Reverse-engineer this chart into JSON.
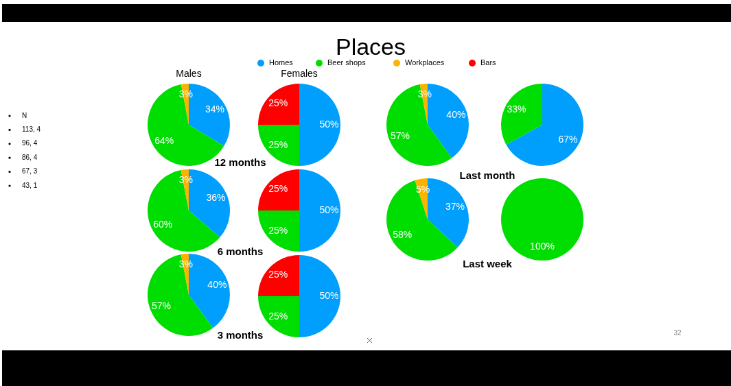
{
  "chart_data": [
    {
      "type": "other",
      "title": "Places",
      "annotations": [
        "N",
        "113, 4",
        "96, 4",
        "86, 4",
        "67, 3",
        "43, 1",
        "32"
      ]
    },
    {
      "type": "pie",
      "title": "Males",
      "xlabel": "12 months",
      "legend": "top",
      "categories": [
        "Homes",
        "Beer shops",
        "Workplaces"
      ],
      "values": [
        34,
        64,
        3
      ],
      "value_labels": [
        "34%",
        "64%",
        "3%"
      ],
      "colors": [
        "#009ffd",
        "#00dd00",
        "#fbb300"
      ]
    },
    {
      "type": "pie",
      "title": "Females",
      "categories": [
        null,
        null,
        "Bars"
      ],
      "values": [
        50,
        25,
        25
      ],
      "value_labels": [
        "50%",
        "25%",
        "25%"
      ],
      "colors": [
        "#009ffd",
        "#00dd00",
        "#ff0000"
      ]
    },
    {
      "type": "pie",
      "xlabel": "6 months",
      "categories": [
        null,
        null,
        null
      ],
      "values": [
        36,
        60,
        3
      ],
      "value_labels": [
        "36%",
        "60%",
        "3%"
      ],
      "colors": [
        "#009ffd",
        "#00dd00",
        "#fbb300"
      ]
    },
    {
      "type": "pie",
      "categories": [
        null,
        null,
        null
      ],
      "values": [
        50,
        25,
        25
      ],
      "value_labels": [
        "50%",
        "25%",
        "25%"
      ],
      "colors": [
        "#009ffd",
        "#00dd00",
        "#ff0000"
      ]
    },
    {
      "type": "pie",
      "xlabel": "3 months",
      "categories": [
        null,
        null,
        null
      ],
      "values": [
        40,
        57,
        3
      ],
      "value_labels": [
        "40%",
        "57%",
        "3%"
      ],
      "colors": [
        "#009ffd",
        "#00dd00",
        "#fbb300"
      ]
    },
    {
      "type": "pie",
      "categories": [
        null,
        null,
        null
      ],
      "values": [
        50,
        25,
        25
      ],
      "value_labels": [
        "50%",
        "25%",
        "25%"
      ],
      "colors": [
        "#009ffd",
        "#00dd00",
        "#ff0000"
      ]
    },
    {
      "type": "pie",
      "xlabel": "Last month",
      "categories": [
        null,
        null,
        null
      ],
      "values": [
        40,
        57,
        3
      ],
      "value_labels": [
        "40%",
        "57%",
        "3%"
      ],
      "colors": [
        "#009ffd",
        "#00dd00",
        "#fbb300"
      ]
    },
    {
      "type": "pie",
      "categories": [
        null,
        null
      ],
      "values": [
        67,
        33
      ],
      "value_labels": [
        "67%",
        "33%"
      ],
      "colors": [
        "#009ffd",
        "#00dd00"
      ]
    },
    {
      "type": "pie",
      "xlabel": "Last week",
      "categories": [
        null,
        null,
        null
      ],
      "values": [
        37,
        58,
        5
      ],
      "value_labels": [
        "37%",
        "58%",
        "5%"
      ],
      "colors": [
        "#009ffd",
        "#00dd00",
        "#fbb300"
      ]
    },
    {
      "type": "pie",
      "categories": [
        null
      ],
      "values": [
        100
      ],
      "value_labels": [
        "100%"
      ],
      "colors": [
        "#00dd00"
      ]
    }
  ]
}
